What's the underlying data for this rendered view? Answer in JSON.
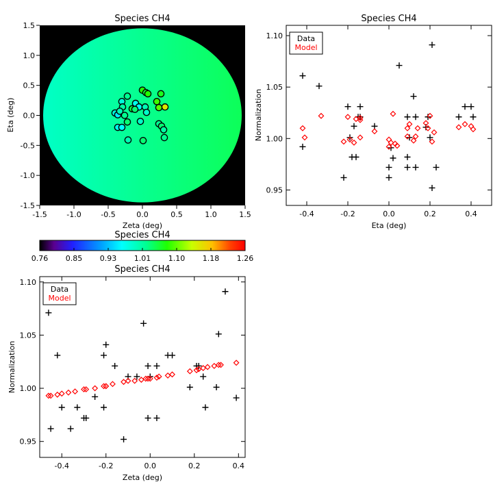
{
  "chart_data": [
    {
      "id": "map",
      "type": "heatmap",
      "title": "Species CH4",
      "xlabel": "Zeta (deg)",
      "ylabel": "Eta (deg)",
      "xlim": [
        -1.5,
        1.5
      ],
      "ylim": [
        -1.5,
        1.5
      ],
      "xticks": [
        "-1.5",
        "-1.0",
        "-0.5",
        "0.0",
        "0.5",
        "1.0",
        "1.5"
      ],
      "yticks": [
        "-1.5",
        "-1.0",
        "-0.5",
        "0.0",
        "0.5",
        "1.0",
        "1.5"
      ],
      "background_color": "#000000",
      "disk_radius": 1.45,
      "field_gradient": {
        "zeta_min": -1.5,
        "zeta_max": 1.5,
        "value_min": 0.99,
        "value_max": 1.04
      },
      "points": [
        {
          "zeta": 0.0,
          "eta": 0.42,
          "value": 1.07
        },
        {
          "zeta": 0.05,
          "eta": 0.38,
          "value": 1.05
        },
        {
          "zeta": 0.08,
          "eta": 0.36,
          "value": 1.07
        },
        {
          "zeta": -0.22,
          "eta": 0.32,
          "value": 1.02
        },
        {
          "zeta": 0.27,
          "eta": 0.36,
          "value": 1.06
        },
        {
          "zeta": -0.3,
          "eta": 0.23,
          "value": 0.98
        },
        {
          "zeta": -0.1,
          "eta": 0.2,
          "value": 0.97
        },
        {
          "zeta": -0.05,
          "eta": 0.14,
          "value": 0.96
        },
        {
          "zeta": 0.04,
          "eta": 0.14,
          "value": 1.0
        },
        {
          "zeta": 0.06,
          "eta": 0.05,
          "value": 0.99
        },
        {
          "zeta": -0.29,
          "eta": 0.14,
          "value": 1.01
        },
        {
          "zeta": -0.15,
          "eta": 0.11,
          "value": 1.05
        },
        {
          "zeta": -0.11,
          "eta": 0.1,
          "value": 1.03
        },
        {
          "zeta": 0.21,
          "eta": 0.23,
          "value": 1.08
        },
        {
          "zeta": 0.33,
          "eta": 0.14,
          "value": 1.15
        },
        {
          "zeta": 0.24,
          "eta": 0.13,
          "value": 1.09
        },
        {
          "zeta": -0.4,
          "eta": 0.04,
          "value": 0.98
        },
        {
          "zeta": -0.36,
          "eta": 0.01,
          "value": 0.95
        },
        {
          "zeta": -0.33,
          "eta": 0.07,
          "value": 1.0
        },
        {
          "zeta": -0.26,
          "eta": 0.0,
          "value": 1.02
        },
        {
          "zeta": -0.03,
          "eta": -0.1,
          "value": 0.99
        },
        {
          "zeta": -0.22,
          "eta": -0.11,
          "value": 1.03
        },
        {
          "zeta": 0.24,
          "eta": -0.14,
          "value": 1.02
        },
        {
          "zeta": 0.28,
          "eta": -0.18,
          "value": 1.03
        },
        {
          "zeta": 0.31,
          "eta": -0.24,
          "value": 1.01
        },
        {
          "zeta": -0.36,
          "eta": -0.2,
          "value": 0.97
        },
        {
          "zeta": -0.3,
          "eta": -0.2,
          "value": 0.96
        },
        {
          "zeta": 0.32,
          "eta": -0.37,
          "value": 1.02
        },
        {
          "zeta": -0.21,
          "eta": -0.41,
          "value": 1.0
        },
        {
          "zeta": 0.01,
          "eta": -0.42,
          "value": 1.03
        }
      ]
    },
    {
      "id": "colorbar",
      "type": "colorbar",
      "title": "Species CH4",
      "range": [
        0.76,
        1.26
      ],
      "tick_labels": [
        "0.76",
        "0.85",
        "0.93",
        "1.01",
        "1.10",
        "1.18",
        "1.26"
      ]
    },
    {
      "id": "eta_plot",
      "type": "scatter",
      "title": "Species CH4",
      "xlabel": "Eta (deg)",
      "ylabel": "Normalization",
      "xlim": [
        -0.5,
        0.5
      ],
      "ylim": [
        0.935,
        1.11
      ],
      "xticks": [
        -0.4,
        -0.2,
        0.0,
        0.2,
        0.4
      ],
      "xtick_labels": [
        "-0.4",
        "-0.2",
        "0.0",
        "0.2",
        "0.4"
      ],
      "yticks": [
        0.95,
        1.0,
        1.05,
        1.1
      ],
      "ytick_labels": [
        "0.95",
        "1.00",
        "1.05",
        "1.10"
      ],
      "legend": {
        "position": "top-left",
        "entries": [
          {
            "label": "Data",
            "color": "#000000"
          },
          {
            "label": "Model",
            "color": "#ff0000"
          }
        ]
      },
      "series": [
        {
          "name": "Data",
          "marker": "plus",
          "color": "#000000",
          "x": [
            -0.42,
            -0.42,
            -0.34,
            -0.22,
            -0.2,
            -0.19,
            -0.18,
            -0.17,
            -0.16,
            -0.15,
            -0.14,
            -0.14,
            -0.07,
            0.0,
            0.0,
            0.01,
            0.02,
            0.05,
            0.09,
            0.09,
            0.09,
            0.1,
            0.12,
            0.13,
            0.13,
            0.18,
            0.19,
            0.2,
            0.21,
            0.21,
            0.23,
            0.34,
            0.37,
            0.4,
            0.41
          ],
          "y": [
            1.061,
            0.992,
            1.051,
            0.962,
            1.031,
            1.001,
            0.982,
            1.012,
            0.982,
            1.021,
            1.031,
            1.021,
            1.012,
            0.972,
            0.962,
            0.991,
            0.981,
            1.071,
            0.982,
            1.021,
            0.972,
            1.001,
            1.041,
            1.021,
            0.972,
            1.011,
            1.021,
            1.001,
            1.091,
            0.952,
            0.972,
            1.021,
            1.031,
            1.031,
            1.021
          ]
        },
        {
          "name": "Model",
          "marker": "diamond",
          "color": "#ff0000",
          "x": [
            -0.42,
            -0.41,
            -0.33,
            -0.22,
            -0.2,
            -0.19,
            -0.17,
            -0.16,
            -0.14,
            -0.14,
            -0.14,
            -0.07,
            0.0,
            0.0,
            0.01,
            0.02,
            0.03,
            0.04,
            0.09,
            0.09,
            0.1,
            0.12,
            0.13,
            0.14,
            0.18,
            0.19,
            0.2,
            0.21,
            0.22,
            0.34,
            0.37,
            0.4,
            0.41
          ],
          "y": [
            1.01,
            1.001,
            1.022,
            0.997,
            1.021,
            0.999,
            0.996,
            1.019,
            1.02,
            1.018,
            1.001,
            1.007,
            0.999,
            0.992,
            0.996,
            1.024,
            0.995,
            0.993,
            1.002,
            1.01,
            1.014,
            0.998,
            1.002,
            1.01,
            1.015,
            1.01,
            1.022,
            0.997,
            1.006,
            1.011,
            1.014,
            1.012,
            1.009
          ]
        }
      ]
    },
    {
      "id": "zeta_plot",
      "type": "scatter",
      "title": "Species CH4",
      "xlabel": "Zeta (deg)",
      "ylabel": "Normalization",
      "xlim": [
        -0.5,
        0.43
      ],
      "ylim": [
        0.935,
        1.105
      ],
      "xticks": [
        -0.4,
        -0.2,
        0.0,
        0.2,
        0.4
      ],
      "xtick_labels": [
        "-0.4",
        "-0.2",
        "0.0",
        "0.2",
        "0.4"
      ],
      "yticks": [
        0.95,
        1.0,
        1.05,
        1.1
      ],
      "ytick_labels": [
        "0.95",
        "1.00",
        "1.05",
        "1.10"
      ],
      "legend": {
        "position": "top-left",
        "entries": [
          {
            "label": "Data",
            "color": "#000000"
          },
          {
            "label": "Model",
            "color": "#ff0000"
          }
        ]
      },
      "series": [
        {
          "name": "Data",
          "marker": "plus",
          "color": "#000000",
          "x": [
            -0.46,
            -0.45,
            -0.42,
            -0.4,
            -0.36,
            -0.33,
            -0.3,
            -0.29,
            -0.25,
            -0.21,
            -0.21,
            -0.2,
            -0.16,
            -0.12,
            -0.1,
            -0.06,
            -0.03,
            -0.01,
            -0.01,
            0.0,
            0.03,
            0.03,
            0.08,
            0.1,
            0.18,
            0.21,
            0.22,
            0.24,
            0.25,
            0.3,
            0.31,
            0.34,
            0.39
          ],
          "y": [
            1.071,
            0.962,
            1.031,
            0.982,
            0.962,
            0.982,
            0.972,
            0.972,
            0.992,
            0.982,
            1.031,
            1.041,
            1.021,
            0.952,
            1.011,
            1.011,
            1.061,
            1.021,
            0.972,
            1.011,
            0.972,
            1.021,
            1.031,
            1.031,
            1.001,
            1.021,
            1.021,
            1.011,
            0.982,
            1.001,
            1.051,
            1.091,
            0.991
          ]
        },
        {
          "name": "Model",
          "marker": "diamond",
          "color": "#ff0000",
          "x": [
            -0.46,
            -0.45,
            -0.42,
            -0.4,
            -0.37,
            -0.34,
            -0.3,
            -0.29,
            -0.25,
            -0.21,
            -0.2,
            -0.2,
            -0.17,
            -0.12,
            -0.1,
            -0.07,
            -0.04,
            -0.02,
            -0.01,
            0.0,
            0.03,
            0.04,
            0.08,
            0.1,
            0.18,
            0.21,
            0.22,
            0.24,
            0.26,
            0.29,
            0.31,
            0.32,
            0.39
          ],
          "y": [
            0.993,
            0.993,
            0.994,
            0.995,
            0.996,
            0.997,
            0.999,
            0.999,
            1.0,
            1.002,
            1.002,
            1.002,
            1.004,
            1.006,
            1.007,
            1.007,
            1.008,
            1.009,
            1.009,
            1.009,
            1.01,
            1.011,
            1.012,
            1.013,
            1.016,
            1.017,
            1.018,
            1.019,
            1.02,
            1.021,
            1.022,
            1.022,
            1.024
          ]
        }
      ]
    }
  ]
}
